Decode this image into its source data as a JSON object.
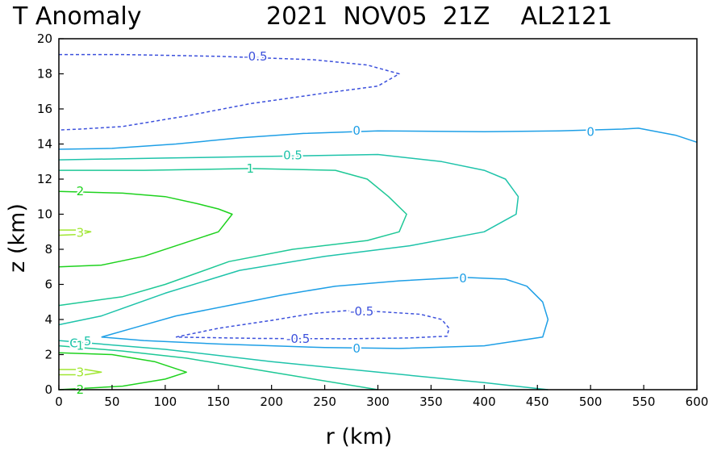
{
  "title": {
    "left": "T Anomaly",
    "right": "2021  NOV05  21Z    AL2121"
  },
  "chart_data": {
    "type": "contour",
    "xlabel": "r (km)",
    "ylabel": "z (km)",
    "xlim": [
      0,
      600
    ],
    "ylim": [
      0,
      20
    ],
    "xticks": [
      "0",
      "50",
      "100",
      "150",
      "200",
      "250",
      "300",
      "350",
      "400",
      "450",
      "500",
      "550",
      "600"
    ],
    "yticks": [
      "0",
      "2",
      "4",
      "6",
      "8",
      "10",
      "12",
      "14",
      "16",
      "18",
      "20"
    ],
    "colors": {
      "neg05": "#3c50dc",
      "zero": "#1e9fe6",
      "pos05": "#1ec3aa",
      "pos1": "#1ec896",
      "pos2": "#1ed21e",
      "pos3": "#a0e632"
    },
    "contours": [
      {
        "level": "-0.5",
        "color_key": "neg05",
        "dashed": true,
        "points": [
          [
            0,
            19.1
          ],
          [
            60,
            19.1
          ],
          [
            150,
            19.0
          ],
          [
            240,
            18.8
          ],
          [
            290,
            18.5
          ],
          [
            320,
            18.0
          ],
          [
            300,
            17.3
          ],
          [
            250,
            16.9
          ],
          [
            180,
            16.3
          ],
          [
            120,
            15.6
          ],
          [
            60,
            15.0
          ],
          [
            20,
            14.85
          ],
          [
            0,
            14.8
          ]
        ]
      },
      {
        "level": "-0.5",
        "color_key": "neg05",
        "dashed": true,
        "points": [
          [
            110,
            3.0
          ],
          [
            150,
            3.5
          ],
          [
            200,
            3.95
          ],
          [
            240,
            4.35
          ],
          [
            270,
            4.5
          ],
          [
            300,
            4.45
          ],
          [
            340,
            4.3
          ],
          [
            360,
            4.0
          ],
          [
            367,
            3.5
          ],
          [
            365,
            3.05
          ],
          [
            330,
            2.95
          ],
          [
            270,
            2.9
          ],
          [
            190,
            2.92
          ],
          [
            110,
            3.0
          ]
        ]
      },
      {
        "level": "0",
        "color_key": "zero",
        "dashed": false,
        "points": [
          [
            0,
            13.7
          ],
          [
            50,
            13.75
          ],
          [
            110,
            14.0
          ],
          [
            170,
            14.35
          ],
          [
            230,
            14.6
          ],
          [
            300,
            14.75
          ],
          [
            400,
            14.7
          ],
          [
            470,
            14.75
          ],
          [
            530,
            14.85
          ],
          [
            545,
            14.9
          ],
          [
            580,
            14.5
          ],
          [
            600,
            14.1
          ]
        ]
      },
      {
        "level": "0",
        "color_key": "zero",
        "dashed": false,
        "points": [
          [
            40,
            3.0
          ],
          [
            75,
            3.6
          ],
          [
            110,
            4.2
          ],
          [
            160,
            4.8
          ],
          [
            210,
            5.4
          ],
          [
            260,
            5.9
          ],
          [
            320,
            6.2
          ],
          [
            380,
            6.4
          ],
          [
            420,
            6.3
          ],
          [
            440,
            5.9
          ],
          [
            455,
            5.0
          ],
          [
            460,
            4.0
          ],
          [
            455,
            3.0
          ],
          [
            400,
            2.5
          ],
          [
            320,
            2.35
          ],
          [
            250,
            2.4
          ],
          [
            150,
            2.6
          ],
          [
            80,
            2.8
          ],
          [
            40,
            3.0
          ]
        ]
      },
      {
        "level": "0.5",
        "color_key": "pos05",
        "dashed": false,
        "points": [
          [
            0,
            13.1
          ],
          [
            100,
            13.2
          ],
          [
            200,
            13.3
          ],
          [
            300,
            13.4
          ],
          [
            360,
            13.0
          ],
          [
            400,
            12.5
          ],
          [
            420,
            12.0
          ],
          [
            432,
            11.0
          ],
          [
            430,
            10.0
          ],
          [
            400,
            9.0
          ],
          [
            330,
            8.2
          ],
          [
            250,
            7.6
          ],
          [
            170,
            6.8
          ],
          [
            100,
            5.5
          ],
          [
            40,
            4.2
          ],
          [
            0,
            3.7
          ]
        ]
      },
      {
        "level": "0.5",
        "color_key": "pos05",
        "dashed": false,
        "points": [
          [
            0,
            2.8
          ],
          [
            100,
            2.3
          ],
          [
            200,
            1.6
          ],
          [
            300,
            1.0
          ],
          [
            400,
            0.4
          ],
          [
            460,
            0.0
          ]
        ]
      },
      {
        "level": "1",
        "color_key": "pos1",
        "dashed": false,
        "points": [
          [
            0,
            12.5
          ],
          [
            80,
            12.5
          ],
          [
            180,
            12.6
          ],
          [
            260,
            12.5
          ],
          [
            290,
            12.0
          ],
          [
            310,
            11.0
          ],
          [
            327,
            10.0
          ],
          [
            320,
            9.0
          ],
          [
            290,
            8.5
          ],
          [
            220,
            8.0
          ],
          [
            160,
            7.3
          ],
          [
            100,
            6.0
          ],
          [
            60,
            5.3
          ],
          [
            0,
            4.8
          ]
        ]
      },
      {
        "level": "1",
        "color_key": "pos1",
        "dashed": false,
        "points": [
          [
            0,
            2.5
          ],
          [
            60,
            2.2
          ],
          [
            120,
            1.8
          ],
          [
            200,
            1.0
          ],
          [
            300,
            0.0
          ]
        ]
      },
      {
        "level": "2",
        "color_key": "pos2",
        "dashed": false,
        "points": [
          [
            0,
            11.3
          ],
          [
            60,
            11.2
          ],
          [
            100,
            11.0
          ],
          [
            130,
            10.6
          ],
          [
            150,
            10.3
          ],
          [
            163,
            10.0
          ],
          [
            150,
            9.0
          ],
          [
            120,
            8.4
          ],
          [
            80,
            7.6
          ],
          [
            40,
            7.1
          ],
          [
            0,
            7.0
          ]
        ]
      },
      {
        "level": "2",
        "color_key": "pos2",
        "dashed": false,
        "points": [
          [
            0,
            2.1
          ],
          [
            50,
            2.0
          ],
          [
            90,
            1.6
          ],
          [
            120,
            1.0
          ],
          [
            100,
            0.6
          ],
          [
            60,
            0.2
          ],
          [
            0,
            0.0
          ]
        ]
      },
      {
        "level": "3",
        "color_key": "pos3",
        "dashed": false,
        "points": [
          [
            0,
            9.1
          ],
          [
            20,
            9.1
          ],
          [
            30,
            9.0
          ],
          [
            20,
            8.85
          ],
          [
            0,
            8.8
          ]
        ]
      },
      {
        "level": "3",
        "color_key": "pos3",
        "dashed": false,
        "points": [
          [
            0,
            1.15
          ],
          [
            25,
            1.15
          ],
          [
            40,
            1.0
          ],
          [
            25,
            0.85
          ],
          [
            0,
            0.85
          ]
        ]
      }
    ],
    "labels": [
      {
        "text": "-0.5",
        "x": 185,
        "y": 19.0,
        "color_key": "neg05"
      },
      {
        "text": "-0.5",
        "x": 285,
        "y": 4.45,
        "color_key": "neg05"
      },
      {
        "text": "-0.5",
        "x": 225,
        "y": 2.9,
        "color_key": "neg05"
      },
      {
        "text": "0",
        "x": 280,
        "y": 14.75,
        "color_key": "zero"
      },
      {
        "text": "0",
        "x": 500,
        "y": 14.7,
        "color_key": "zero"
      },
      {
        "text": "0",
        "x": 380,
        "y": 6.35,
        "color_key": "zero"
      },
      {
        "text": "0",
        "x": 280,
        "y": 2.35,
        "color_key": "zero"
      },
      {
        "text": "0.5",
        "x": 220,
        "y": 13.35,
        "color_key": "pos05"
      },
      {
        "text": "1",
        "x": 180,
        "y": 12.6,
        "color_key": "pos1"
      },
      {
        "text": "2",
        "x": 20,
        "y": 11.3,
        "color_key": "pos2"
      },
      {
        "text": "3",
        "x": 20,
        "y": 8.95,
        "color_key": "pos3"
      },
      {
        "text": "3",
        "x": 20,
        "y": 1.0,
        "color_key": "pos3"
      },
      {
        "text": "C",
        "x": 14,
        "y": 2.65,
        "color_key": "pos05"
      },
      {
        "text": "1",
        "x": 20,
        "y": 2.5,
        "color_key": "pos1"
      },
      {
        "text": "5",
        "x": 27,
        "y": 2.75,
        "color_key": "pos05"
      },
      {
        "text": "2",
        "x": 20,
        "y": 0.0,
        "color_key": "pos2"
      }
    ]
  }
}
